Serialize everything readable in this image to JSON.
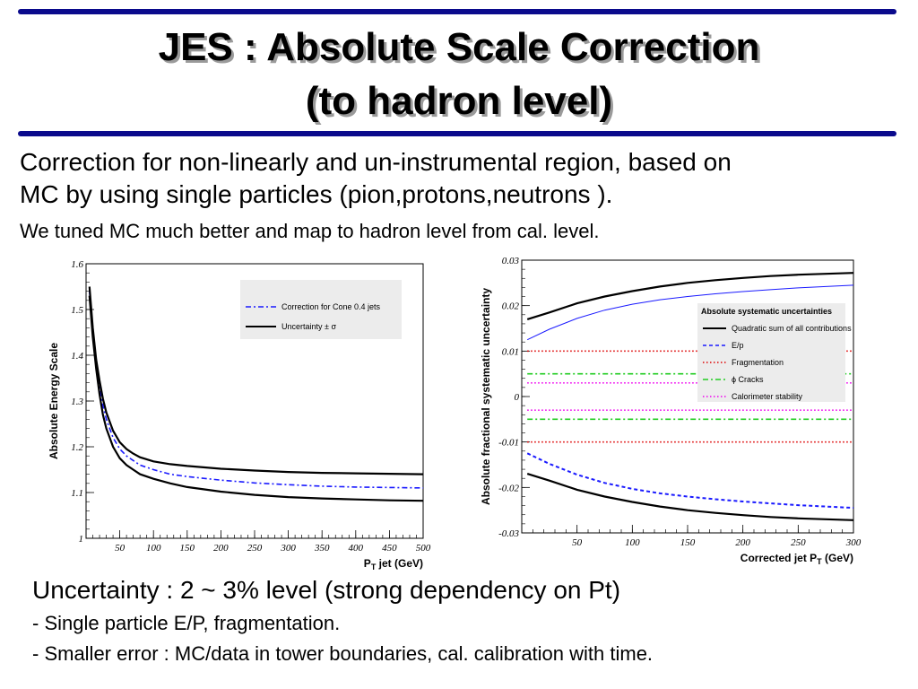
{
  "slide": {
    "title_line1": "JES : Absolute Scale Correction",
    "title_line2": "(to hadron level)",
    "para1": "Correction for non-linearly and un-instrumental region, based on",
    "para2": "MC by using single particles (pion,protons,neutrons ).",
    "para3": "We tuned MC much better and map to hadron level from cal. level.",
    "bullet_main": "Uncertainty : 2 ~ 3% level (strong dependency on Pt)",
    "bullet_a": "- Single particle E/P, fragmentation.",
    "bullet_b": "- Smaller error : MC/data in tower boundaries, cal. calibration with time."
  },
  "colors": {
    "rule": "#0a0a8c",
    "blue": "#1a1aff",
    "red": "#dd0000",
    "green": "#22cc22",
    "magenta": "#ee00ee"
  },
  "chart_data": [
    {
      "type": "line",
      "ylabel": "Absolute Energy Scale",
      "xlabel_main": "P",
      "xlabel_sub": "T",
      "xlabel_rest": " jet (GeV)",
      "xlim": [
        0,
        500
      ],
      "ylim": [
        1.0,
        1.6
      ],
      "xticks": [
        50,
        100,
        150,
        200,
        250,
        300,
        350,
        400,
        450,
        500
      ],
      "yticks": [
        1,
        1.1,
        1.2,
        1.3,
        1.4,
        1.5,
        1.6
      ],
      "ytick_labels": [
        "1",
        "1.1",
        "1.2",
        "1.3",
        "1.4",
        "1.5",
        "1.6"
      ],
      "legend": [
        {
          "label": "Correction for Cone 0.4 jets",
          "color": "#1a1aff",
          "style": "dashdot"
        },
        {
          "label": "Uncertainty ± σ",
          "color": "#000000",
          "style": "solid"
        }
      ],
      "series": [
        {
          "name": "Correction for Cone 0.4 jets",
          "color": "#1a1aff",
          "style": "dashdot",
          "x": [
            5,
            10,
            15,
            20,
            25,
            30,
            40,
            50,
            60,
            70,
            80,
            100,
            125,
            150,
            200,
            250,
            300,
            350,
            400,
            450,
            500
          ],
          "y": [
            1.54,
            1.45,
            1.38,
            1.33,
            1.29,
            1.26,
            1.22,
            1.195,
            1.18,
            1.17,
            1.16,
            1.15,
            1.14,
            1.135,
            1.127,
            1.121,
            1.117,
            1.114,
            1.112,
            1.111,
            1.11
          ]
        },
        {
          "name": "Uncertainty + σ",
          "color": "#000000",
          "style": "solid",
          "x": [
            5,
            10,
            15,
            20,
            25,
            30,
            40,
            50,
            60,
            70,
            80,
            100,
            125,
            150,
            200,
            250,
            300,
            350,
            400,
            450,
            500
          ],
          "y": [
            1.55,
            1.46,
            1.39,
            1.345,
            1.305,
            1.275,
            1.235,
            1.21,
            1.195,
            1.185,
            1.177,
            1.168,
            1.162,
            1.158,
            1.152,
            1.148,
            1.145,
            1.143,
            1.142,
            1.141,
            1.14
          ]
        },
        {
          "name": "Uncertainty − σ",
          "color": "#000000",
          "style": "solid",
          "x": [
            5,
            10,
            15,
            20,
            25,
            30,
            40,
            50,
            60,
            70,
            80,
            100,
            125,
            150,
            200,
            250,
            300,
            350,
            400,
            450,
            500
          ],
          "y": [
            1.53,
            1.44,
            1.37,
            1.315,
            1.27,
            1.24,
            1.2,
            1.175,
            1.16,
            1.15,
            1.14,
            1.13,
            1.12,
            1.112,
            1.102,
            1.095,
            1.09,
            1.087,
            1.085,
            1.083,
            1.082
          ]
        }
      ]
    },
    {
      "type": "line",
      "ylabel": "Absolute fractional systematic uncertainty",
      "xlabel_main": "Corrected jet P",
      "xlabel_sub": "T",
      "xlabel_rest": " (GeV)",
      "xlim": [
        0,
        300
      ],
      "ylim": [
        -0.03,
        0.03
      ],
      "xticks": [
        50,
        100,
        150,
        200,
        250,
        300
      ],
      "yticks": [
        -0.03,
        -0.02,
        -0.01,
        0,
        0.01,
        0.02,
        0.03
      ],
      "ytick_labels": [
        "-0.03",
        "-0.02",
        "-0.01",
        "0",
        "0.01",
        "0.02",
        "0.03"
      ],
      "legend_title": "Absolute systematic uncertainties",
      "legend": [
        {
          "label": "Quadratic sum of all contributions",
          "color": "#000000",
          "style": "solid"
        },
        {
          "label": "E/p",
          "color": "#1a1aff",
          "style": "dash"
        },
        {
          "label": "Fragmentation",
          "color": "#dd0000",
          "style": "dot"
        },
        {
          "label": "ϕ Cracks",
          "color": "#22cc22",
          "style": "dashdot"
        },
        {
          "label": "Calorimeter stability",
          "color": "#ee00ee",
          "style": "dot"
        }
      ],
      "series": [
        {
          "name": "Quadratic sum of all contributions",
          "color": "#000000",
          "style": "solid",
          "x": [
            5,
            25,
            50,
            75,
            100,
            125,
            150,
            175,
            200,
            225,
            250,
            275,
            300
          ],
          "y": [
            0.017,
            0.0185,
            0.0205,
            0.022,
            0.0232,
            0.0242,
            0.025,
            0.0256,
            0.0261,
            0.0265,
            0.0268,
            0.027,
            0.0272
          ]
        },
        {
          "name": "Quadratic sum (negative)",
          "color": "#000000",
          "style": "solid",
          "x": [
            5,
            25,
            50,
            75,
            100,
            125,
            150,
            175,
            200,
            225,
            250,
            275,
            300
          ],
          "y": [
            -0.017,
            -0.0185,
            -0.0205,
            -0.022,
            -0.0232,
            -0.0242,
            -0.025,
            -0.0256,
            -0.0261,
            -0.0265,
            -0.0268,
            -0.027,
            -0.0272
          ]
        },
        {
          "name": "E/p (positive)",
          "color": "#1a1aff",
          "style": "solid-thin",
          "x": [
            5,
            25,
            50,
            75,
            100,
            125,
            150,
            175,
            200,
            225,
            250,
            275,
            300
          ],
          "y": [
            0.0125,
            0.0148,
            0.0172,
            0.019,
            0.0203,
            0.0213,
            0.022,
            0.0226,
            0.0231,
            0.0235,
            0.0239,
            0.0242,
            0.0245
          ]
        },
        {
          "name": "E/p",
          "color": "#1a1aff",
          "style": "dash",
          "x": [
            5,
            25,
            50,
            75,
            100,
            125,
            150,
            175,
            200,
            225,
            250,
            275,
            300
          ],
          "y": [
            -0.0125,
            -0.0148,
            -0.0172,
            -0.019,
            -0.0203,
            -0.0213,
            -0.022,
            -0.0226,
            -0.0231,
            -0.0235,
            -0.0239,
            -0.0242,
            -0.0245
          ]
        },
        {
          "name": "Fragmentation (+)",
          "color": "#dd0000",
          "style": "dot",
          "x": [
            5,
            300
          ],
          "y": [
            0.01,
            0.01
          ]
        },
        {
          "name": "Fragmentation",
          "color": "#dd0000",
          "style": "dot",
          "x": [
            5,
            300
          ],
          "y": [
            -0.01,
            -0.01
          ]
        },
        {
          "name": "ϕ Cracks (+)",
          "color": "#22cc22",
          "style": "dashdot",
          "x": [
            5,
            300
          ],
          "y": [
            0.005,
            0.005
          ]
        },
        {
          "name": "ϕ Cracks",
          "color": "#22cc22",
          "style": "dashdot",
          "x": [
            5,
            300
          ],
          "y": [
            -0.005,
            -0.005
          ]
        },
        {
          "name": "Calorimeter stability (+)",
          "color": "#ee00ee",
          "style": "dot",
          "x": [
            5,
            300
          ],
          "y": [
            0.003,
            0.003
          ]
        },
        {
          "name": "Calorimeter stability",
          "color": "#ee00ee",
          "style": "dot",
          "x": [
            5,
            300
          ],
          "y": [
            -0.003,
            -0.003
          ]
        }
      ]
    }
  ]
}
